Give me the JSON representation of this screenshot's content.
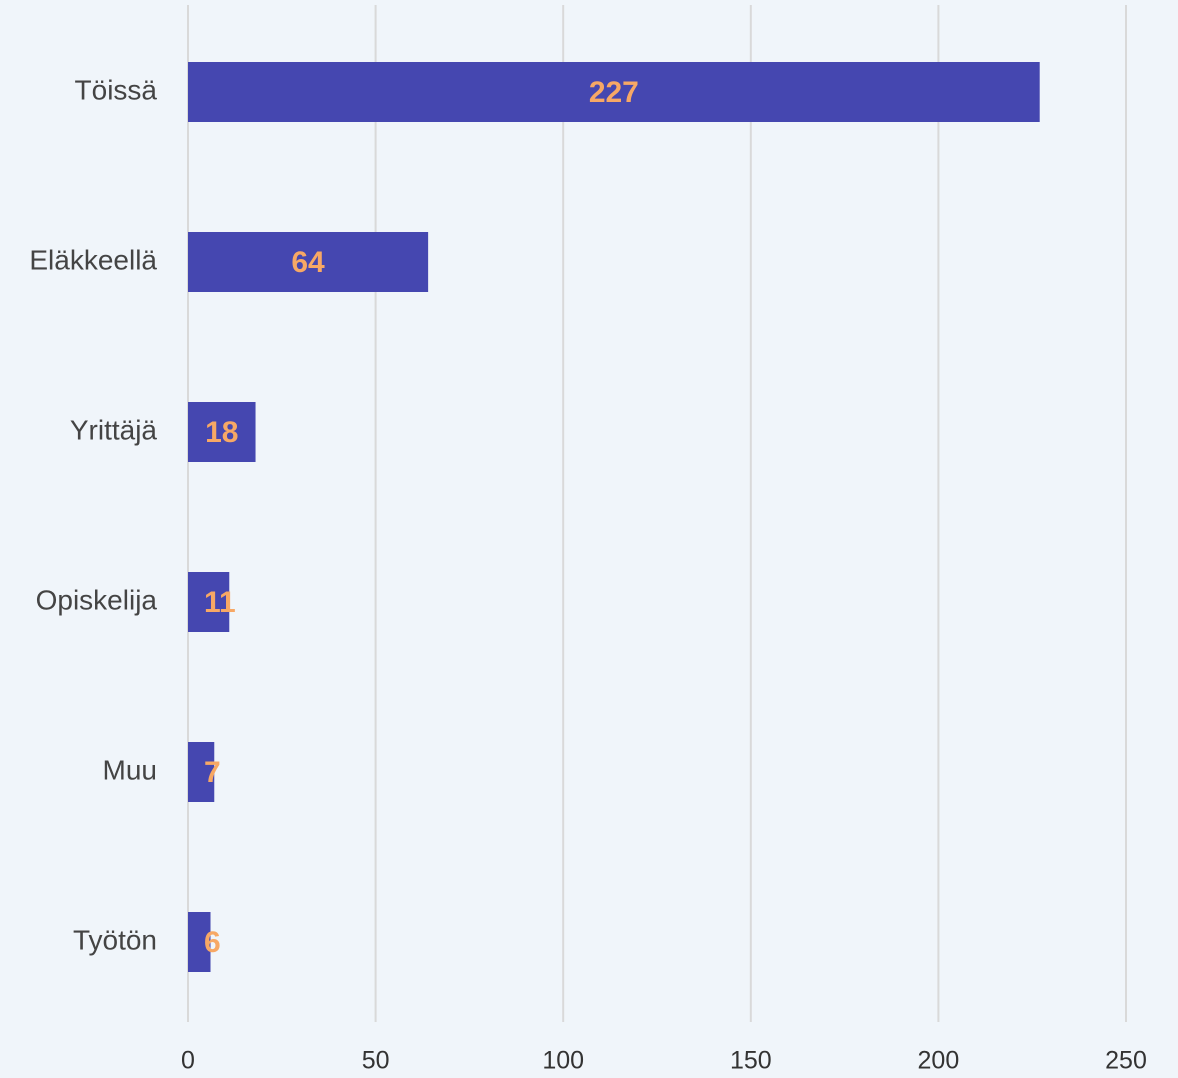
{
  "chart_data": {
    "type": "bar",
    "orientation": "horizontal",
    "categories": [
      "Töissä",
      "Eläkkeellä",
      "Yrittäjä",
      "Opiskelija",
      "Muu",
      "Työtön"
    ],
    "values": [
      227,
      64,
      18,
      11,
      7,
      6
    ],
    "color": "#4547b0",
    "label_color": "#f7a865",
    "xlim": [
      0,
      250
    ],
    "xticks": [
      0,
      50,
      100,
      150,
      200,
      250
    ],
    "grid": true
  }
}
